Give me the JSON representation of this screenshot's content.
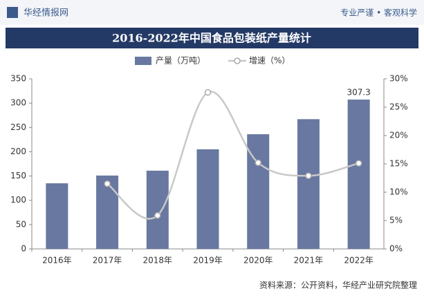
{
  "header": {
    "brand": "华经情报网",
    "slogan": "专业严谨 • 客观科学"
  },
  "chart_data": {
    "type": "bar",
    "title": "2016-2022年中国食品包装纸产量统计",
    "categories": [
      "2016年",
      "2017年",
      "2018年",
      "2019年",
      "2020年",
      "2021年",
      "2022年"
    ],
    "series": [
      {
        "name": "产量（万吨）",
        "color": "#6878a0",
        "values": [
          135,
          151,
          161,
          205,
          236,
          267,
          307.3
        ]
      },
      {
        "name": "增速（%）",
        "color": "#c8c8c8",
        "axis": "y2",
        "type": "line",
        "values": [
          null,
          11.5,
          5.9,
          27.6,
          15.2,
          12.9,
          15.1
        ]
      }
    ],
    "ylim": [
      0,
      350
    ],
    "yticks": [
      0,
      50,
      100,
      150,
      200,
      250,
      300,
      350
    ],
    "y2lim": [
      0,
      30
    ],
    "y2ticks": [
      {
        "value": 0,
        "label": "0%"
      },
      {
        "value": 5,
        "label": "5%"
      },
      {
        "value": 10,
        "label": "10%"
      },
      {
        "value": 15,
        "label": "15%"
      },
      {
        "value": 20,
        "label": "20%"
      },
      {
        "value": 25,
        "label": "25%"
      },
      {
        "value": 30,
        "label": "30%"
      }
    ],
    "source": "资料来源：公开资料，华经产业研究院整理"
  }
}
